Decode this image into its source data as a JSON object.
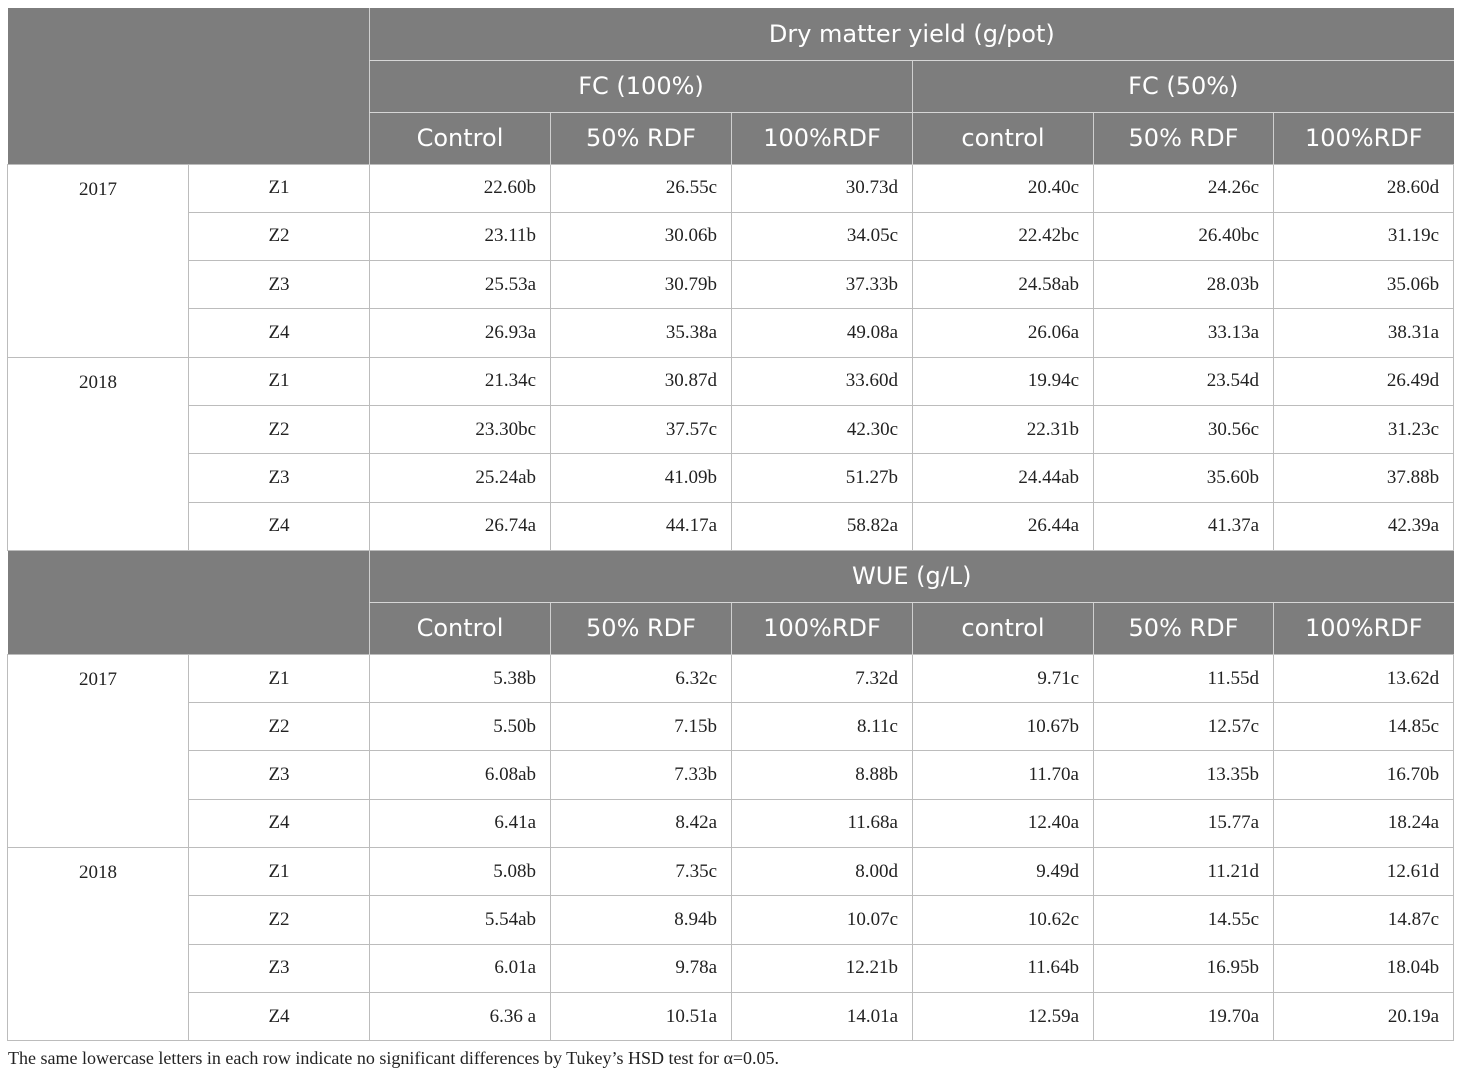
{
  "section1": {
    "title": "Dry matter yield (g/pot)",
    "groups": [
      "FC (100%)",
      "FC (50%)"
    ],
    "columns": [
      "Control",
      "50% RDF",
      "100%RDF",
      "control",
      "50% RDF",
      "100%RDF"
    ],
    "blocks": [
      {
        "year": "2017",
        "rows": [
          {
            "zone": "Z1",
            "values": [
              "22.60b",
              "26.55c",
              "30.73d",
              "20.40c",
              "24.26c",
              "28.60d"
            ]
          },
          {
            "zone": "Z2",
            "values": [
              "23.11b",
              "30.06b",
              "34.05c",
              "22.42bc",
              "26.40bc",
              "31.19c"
            ]
          },
          {
            "zone": "Z3",
            "values": [
              "25.53a",
              "30.79b",
              "37.33b",
              "24.58ab",
              "28.03b",
              "35.06b"
            ]
          },
          {
            "zone": "Z4",
            "values": [
              "26.93a",
              "35.38a",
              "49.08a",
              "26.06a",
              "33.13a",
              "38.31a"
            ]
          }
        ]
      },
      {
        "year": "2018",
        "rows": [
          {
            "zone": "Z1",
            "values": [
              "21.34c",
              "30.87d",
              "33.60d",
              "19.94c",
              "23.54d",
              "26.49d"
            ]
          },
          {
            "zone": "Z2",
            "values": [
              "23.30bc",
              "37.57c",
              "42.30c",
              "22.31b",
              "30.56c",
              "31.23c"
            ]
          },
          {
            "zone": "Z3",
            "values": [
              "25.24ab",
              "41.09b",
              "51.27b",
              "24.44ab",
              "35.60b",
              "37.88b"
            ]
          },
          {
            "zone": "Z4",
            "values": [
              "26.74a",
              "44.17a",
              "58.82a",
              "26.44a",
              "41.37a",
              "42.39a"
            ]
          }
        ]
      }
    ]
  },
  "section2": {
    "title": "WUE (g/L)",
    "columns": [
      "Control",
      "50% RDF",
      "100%RDF",
      "control",
      "50% RDF",
      "100%RDF"
    ],
    "blocks": [
      {
        "year": "2017",
        "rows": [
          {
            "zone": "Z1",
            "values": [
              "5.38b",
              "6.32c",
              "7.32d",
              "9.71c",
              "11.55d",
              "13.62d"
            ]
          },
          {
            "zone": "Z2",
            "values": [
              "5.50b",
              "7.15b",
              "8.11c",
              "10.67b",
              "12.57c",
              "14.85c"
            ]
          },
          {
            "zone": "Z3",
            "values": [
              "6.08ab",
              "7.33b",
              "8.88b",
              "11.70a",
              "13.35b",
              "16.70b"
            ]
          },
          {
            "zone": "Z4",
            "values": [
              "6.41a",
              "8.42a",
              "11.68a",
              "12.40a",
              "15.77a",
              "18.24a"
            ]
          }
        ]
      },
      {
        "year": "2018",
        "rows": [
          {
            "zone": "Z1",
            "values": [
              "5.08b",
              "7.35c",
              "8.00d",
              "9.49d",
              "11.21d",
              "12.61d"
            ]
          },
          {
            "zone": "Z2",
            "values": [
              "5.54ab",
              "8.94b",
              "10.07c",
              "10.62c",
              "14.55c",
              "14.87c"
            ]
          },
          {
            "zone": "Z3",
            "values": [
              "6.01a",
              "9.78a",
              "12.21b",
              "11.64b",
              "16.95b",
              "18.04b"
            ]
          },
          {
            "zone": "Z4",
            "values": [
              "6.36 a",
              "10.51a",
              "14.01a",
              "12.59a",
              "19.70a",
              "20.19a"
            ]
          }
        ]
      }
    ]
  },
  "footnote": "The same lowercase letters in each row indicate no significant differences by Tukey’s HSD test for α=0.05."
}
